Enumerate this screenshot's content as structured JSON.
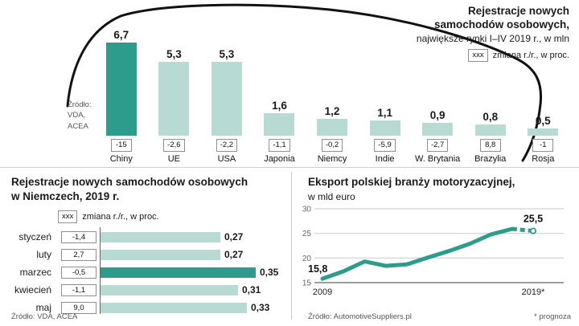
{
  "colors": {
    "teal_dark": "#2E9C8D",
    "teal_light": "#B7DBD3",
    "car_outline": "#111111",
    "grid": "#c9c9c9"
  },
  "chart_data": [
    {
      "id": "new-car-registrations-markets",
      "type": "bar",
      "title": "Rejestracje nowych samochodów osobowych,",
      "subtitle": "największe rynki I–IV 2019 r., w mln",
      "legend_badge": "xxx",
      "legend_label": "zmiana r./r., w proc.",
      "source": "Źródło: VDA, ACEA",
      "categories": [
        "Chiny",
        "UE",
        "USA",
        "Japonia",
        "Niemcy",
        "Indie",
        "W. Brytania",
        "Brazylia",
        "Rosja"
      ],
      "values": [
        6.7,
        5.3,
        5.3,
        1.6,
        1.2,
        1.1,
        0.9,
        0.8,
        0.5
      ],
      "value_labels": [
        "6,7",
        "5,3",
        "5,3",
        "1,6",
        "1,2",
        "1,1",
        "0,9",
        "0,8",
        "0,5"
      ],
      "change_labels": [
        "-15",
        "-2,6",
        "-2,2",
        "-1,1",
        "-0,2",
        "-5,9",
        "-2,7",
        "8,8",
        "-1"
      ],
      "highlight_index": 0,
      "ylim": [
        0,
        6.7
      ]
    },
    {
      "id": "germany-monthly-registrations",
      "type": "bar",
      "orientation": "horizontal",
      "title": "Rejestracje nowych samochodów osobowych",
      "title2": "w Niemczech, 2019 r.",
      "legend_badge": "xxx",
      "legend_label": "zmiana r./r., w proc.",
      "source": "Źródło: VDA, ACEA",
      "categories": [
        "styczeń",
        "luty",
        "marzec",
        "kwiecień",
        "maj"
      ],
      "values": [
        0.27,
        0.27,
        0.35,
        0.31,
        0.33
      ],
      "value_labels": [
        "0,27",
        "0,27",
        "0,35",
        "0,31",
        "0,33"
      ],
      "change_labels": [
        "-1,4",
        "2,7",
        "-0,5",
        "-1,1",
        "9,0"
      ],
      "highlight_index": 2,
      "xlim": [
        0,
        0.35
      ]
    },
    {
      "id": "polish-automotive-export",
      "type": "line",
      "title": "Eksport polskiej branży motoryzacyjnej,",
      "subtitle": "w mld euro",
      "source": "Źródło: AutomotiveSuppliers.pl",
      "footnote": "* prognoza",
      "x": [
        2009,
        2010,
        2011,
        2012,
        2013,
        2014,
        2015,
        2016,
        2017,
        2018,
        2019
      ],
      "values": [
        15.8,
        17.3,
        19.3,
        18.4,
        18.7,
        20.1,
        21.4,
        22.9,
        24.8,
        25.9,
        25.5
      ],
      "forecast_from_index": 9,
      "first_label": "15,8",
      "last_label": "25,5",
      "x_tick_labels": [
        "2009",
        "2019*"
      ],
      "y_ticks": [
        15,
        20,
        25,
        30
      ],
      "ylim": [
        15,
        30
      ]
    }
  ]
}
